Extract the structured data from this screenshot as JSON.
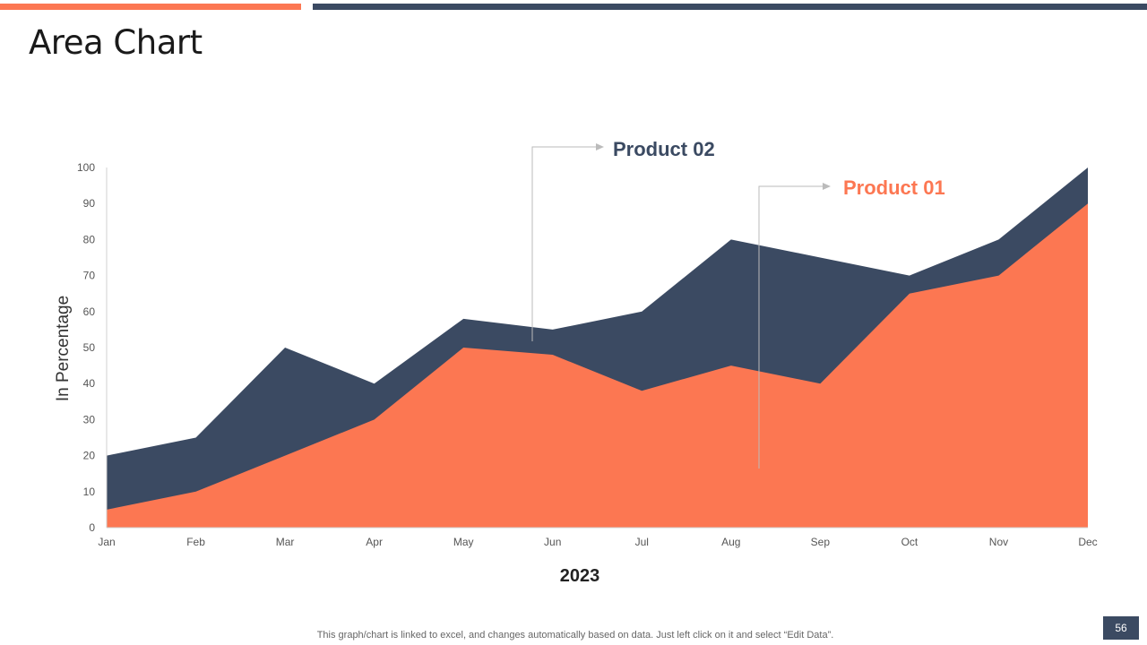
{
  "slide": {
    "title": "Area Chart",
    "footer": "This graph/chart is linked to excel, and changes automatically based on data. Just left click on it and select “Edit Data”.",
    "page_number": "56"
  },
  "colors": {
    "accent": "#fc7752",
    "dark": "#3b4a62",
    "tick": "#555555",
    "leader": "#bbbbbb"
  },
  "chart_data": {
    "type": "area",
    "stacked": false,
    "categories": [
      "Jan",
      "Feb",
      "Mar",
      "Apr",
      "May",
      "Jun",
      "Jul",
      "Aug",
      "Sep",
      "Oct",
      "Nov",
      "Dec"
    ],
    "series": [
      {
        "name": "Product 02",
        "color": "#3b4a62",
        "values": [
          20,
          25,
          50,
          40,
          58,
          55,
          60,
          80,
          75,
          70,
          80,
          100
        ]
      },
      {
        "name": "Product 01",
        "color": "#fc7752",
        "values": [
          5,
          10,
          20,
          30,
          50,
          48,
          38,
          45,
          40,
          65,
          70,
          90
        ]
      }
    ],
    "ylim": [
      0,
      100
    ],
    "yticks": [
      0,
      10,
      20,
      30,
      40,
      50,
      60,
      70,
      80,
      90,
      100
    ],
    "xlabel": "2023",
    "ylabel": "In Percentage",
    "grid": false,
    "legend": "callout-labels",
    "annotations": [
      {
        "text": "Product 02",
        "series": "Product 02"
      },
      {
        "text": "Product 01",
        "series": "Product 01"
      }
    ]
  }
}
